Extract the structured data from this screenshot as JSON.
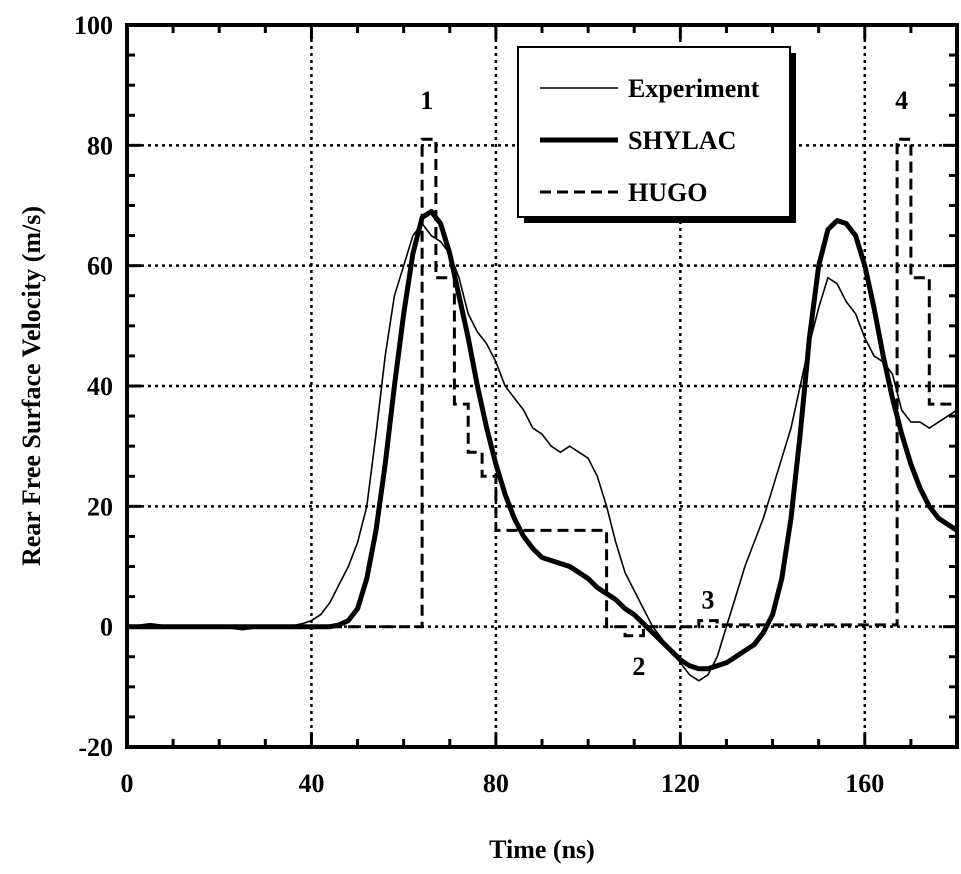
{
  "chart_data": {
    "type": "line",
    "title": "",
    "xlabel": "Time (ns)",
    "ylabel": "Rear Free Surface Velocity (m/s)",
    "xlim": [
      0,
      180
    ],
    "ylim": [
      -20,
      100
    ],
    "xticks": [
      0,
      40,
      80,
      120,
      160
    ],
    "yticks": [
      -20,
      0,
      20,
      40,
      60,
      80,
      100
    ],
    "grid": "dotted at x=40,80,120,160 and y=0,20,40,60,80",
    "legend_position": "top-right",
    "series": [
      {
        "name": "Experiment",
        "style": "thin-solid",
        "x": [
          0,
          5,
          10,
          15,
          20,
          25,
          30,
          35,
          38,
          40,
          42,
          44,
          46,
          48,
          50,
          52,
          54,
          56,
          58,
          60,
          62,
          64,
          66,
          68,
          70,
          72,
          74,
          76,
          78,
          80,
          82,
          84,
          86,
          88,
          90,
          92,
          94,
          96,
          98,
          100,
          102,
          104,
          106,
          108,
          110,
          112,
          114,
          116,
          118,
          120,
          122,
          124,
          126,
          128,
          130,
          132,
          134,
          136,
          138,
          140,
          142,
          144,
          146,
          148,
          150,
          152,
          154,
          156,
          158,
          160,
          162,
          164,
          166,
          168,
          170,
          172,
          174,
          176,
          178,
          180
        ],
        "y": [
          0,
          0.5,
          0,
          0,
          0,
          -0.5,
          0,
          0,
          0.5,
          1,
          2,
          4,
          7,
          10,
          14,
          20,
          32,
          45,
          55,
          60,
          65,
          67,
          65,
          64,
          62,
          58,
          52,
          49,
          47,
          44,
          40,
          38,
          36,
          33,
          32,
          30,
          29,
          30,
          29,
          28,
          25,
          20,
          14,
          9,
          6,
          3,
          0,
          -2,
          -4,
          -6,
          -8,
          -9,
          -8,
          -5,
          0,
          5,
          10,
          14,
          18,
          23,
          28,
          33,
          40,
          47,
          53,
          58,
          57,
          54,
          52,
          48,
          45,
          44,
          42,
          36,
          34,
          34,
          33,
          34,
          35,
          36
        ]
      },
      {
        "name": "SHYLAC",
        "style": "thick-solid",
        "x": [
          0,
          40,
          44,
          46,
          48,
          50,
          52,
          54,
          56,
          58,
          60,
          62,
          64,
          66,
          68,
          70,
          72,
          74,
          76,
          78,
          80,
          82,
          84,
          86,
          88,
          90,
          92,
          94,
          96,
          98,
          100,
          102,
          104,
          106,
          108,
          110,
          112,
          114,
          116,
          118,
          120,
          122,
          124,
          126,
          128,
          130,
          132,
          134,
          136,
          138,
          140,
          142,
          144,
          146,
          148,
          150,
          152,
          154,
          156,
          158,
          160,
          162,
          164,
          166,
          168,
          170,
          172,
          174,
          176,
          178,
          180
        ],
        "y": [
          0,
          0,
          0,
          0.3,
          1,
          3,
          8,
          16,
          27,
          40,
          52,
          62,
          68,
          69,
          67,
          62,
          55,
          48,
          40,
          33,
          27,
          22,
          18,
          15,
          13,
          11.5,
          11,
          10.5,
          10,
          9,
          8,
          6.5,
          5.5,
          4.5,
          3,
          2,
          0.5,
          -1,
          -2.5,
          -4,
          -5.5,
          -6.5,
          -7,
          -7,
          -6.5,
          -6,
          -5,
          -4,
          -3,
          -1,
          2,
          8,
          18,
          32,
          48,
          60,
          66,
          67.5,
          67,
          65,
          60,
          53,
          45,
          38,
          32,
          27,
          23,
          20,
          18,
          17,
          16
        ]
      },
      {
        "name": "HUGO",
        "style": "dashed-step",
        "x": [
          0,
          64,
          64,
          67,
          67,
          68,
          68,
          71,
          71,
          74,
          74,
          77,
          77,
          80,
          80,
          84,
          84,
          104,
          104,
          108,
          108,
          112,
          112,
          124,
          124,
          128,
          128,
          167,
          167,
          170,
          170,
          174,
          174,
          177,
          177,
          180
        ],
        "y": [
          0,
          0,
          81,
          81,
          58,
          58,
          58,
          58,
          37,
          37,
          29,
          29,
          25,
          25,
          16,
          16,
          16,
          16,
          0,
          0,
          -1.5,
          -1.5,
          0,
          0,
          1,
          1,
          0.3,
          0.3,
          81,
          81,
          58,
          58,
          37,
          37,
          37,
          37
        ]
      }
    ],
    "annotations": [
      {
        "text": "1",
        "x": 65,
        "y": 86
      },
      {
        "text": "2",
        "x": 111,
        "y": -8
      },
      {
        "text": "3",
        "x": 126,
        "y": 3
      },
      {
        "text": "4",
        "x": 168,
        "y": 86
      }
    ]
  }
}
